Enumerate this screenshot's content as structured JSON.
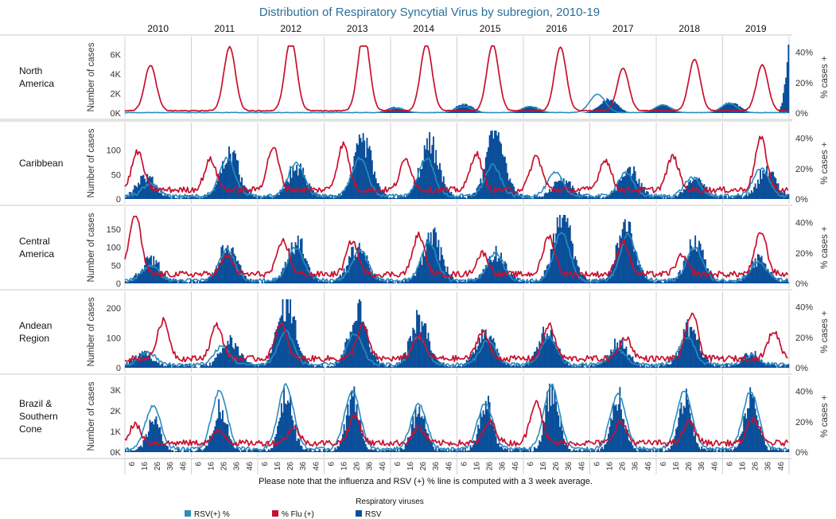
{
  "chart_data": {
    "type": "bar+line",
    "title": "Distribution of Respiratory Syncytial Virus by subregion, 2010-19",
    "years": [
      "2010",
      "2011",
      "2012",
      "2013",
      "2014",
      "2015",
      "2016",
      "2017",
      "2018",
      "2019"
    ],
    "week_ticks": [
      "6",
      "16",
      "26",
      "36",
      "46"
    ],
    "left_axis_title": "Number of cases",
    "right_axis_title": "% cases +",
    "right_ticks": [
      "0%",
      "20%",
      "40%"
    ],
    "right_ylim": [
      0,
      45
    ],
    "note": "Please note that the influenza and RSV (+) % line is computed with a 3 week average.",
    "legend": {
      "title": "Respiratory viruses",
      "items": [
        {
          "label": "RSV(+) %",
          "color": "#2b8cbe"
        },
        {
          "label": "% Flu (+)",
          "color": "#c8102e"
        },
        {
          "label": "RSV",
          "color": "#08519c"
        }
      ]
    },
    "colors": {
      "rsv_bars": "#0b4f9a",
      "rsv_pct": "#2b8cbe",
      "flu_pct": "#c8102e"
    },
    "panels": [
      {
        "region": "North America",
        "region_lines": [
          "North",
          "America"
        ],
        "left_ticks": [
          "0K",
          "2K",
          "4K",
          "6K"
        ],
        "left_tick_values": [
          0,
          2000,
          4000,
          6000
        ],
        "ylim": [
          0,
          7000
        ],
        "rsv_peaks": [
          [
            0,
            0
          ],
          [
            0,
            0
          ],
          [
            0,
            0
          ],
          [
            0,
            0
          ],
          [
            600,
            3
          ],
          [
            900,
            5
          ],
          [
            700,
            5
          ],
          [
            1400,
            14
          ],
          [
            800,
            5
          ],
          [
            1100,
            6
          ]
        ],
        "rsv_end_surge": 6800,
        "flu_peaks": [
          [
            30,
            20
          ],
          [
            42,
            30
          ],
          [
            48,
            26
          ],
          [
            52,
            31
          ],
          [
            44,
            28
          ],
          [
            44,
            28
          ],
          [
            42,
            29
          ],
          [
            28,
            26
          ],
          [
            34,
            30
          ],
          [
            30,
            31
          ]
        ],
        "rsv_pct_peaks": [
          [
            0,
            0
          ],
          [
            0,
            0
          ],
          [
            0,
            0
          ],
          [
            0,
            0
          ],
          [
            3,
            5
          ],
          [
            4,
            5
          ],
          [
            4,
            5
          ],
          [
            12,
            6
          ],
          [
            5,
            5
          ],
          [
            6,
            5
          ]
        ]
      },
      {
        "region": "Caribbean",
        "region_lines": [
          "Caribbean"
        ],
        "left_ticks": [
          "0",
          "50",
          "100"
        ],
        "left_tick_values": [
          0,
          50,
          100
        ],
        "ylim": [
          0,
          140
        ],
        "rsv_peaks": [
          [
            40,
            16
          ],
          [
            88,
            30
          ],
          [
            60,
            30
          ],
          [
            110,
            30
          ],
          [
            105,
            30
          ],
          [
            135,
            30
          ],
          [
            35,
            30
          ],
          [
            60,
            30
          ],
          [
            35,
            30
          ],
          [
            55,
            34
          ]
        ],
        "flu_peaks": [
          [
            25,
            10
          ],
          [
            20,
            15
          ],
          [
            28,
            12
          ],
          [
            30,
            15
          ],
          [
            20,
            12
          ],
          [
            24,
            15
          ],
          [
            22,
            10
          ],
          [
            20,
            12
          ],
          [
            22,
            13
          ],
          [
            34,
            30
          ]
        ],
        "rsv_pct_peaks": [
          [
            8,
            20
          ],
          [
            25,
            28
          ],
          [
            22,
            30
          ],
          [
            25,
            28
          ],
          [
            25,
            28
          ],
          [
            20,
            28
          ],
          [
            15,
            25
          ],
          [
            15,
            28
          ],
          [
            12,
            28
          ],
          [
            18,
            30
          ]
        ]
      },
      {
        "region": "Central America",
        "region_lines": [
          "Central",
          "America"
        ],
        "left_ticks": [
          "0",
          "50",
          "100",
          "150"
        ],
        "left_tick_values": [
          0,
          50,
          100,
          150
        ],
        "ylim": [
          0,
          190
        ],
        "rsv_peaks": [
          [
            60,
            20
          ],
          [
            100,
            28
          ],
          [
            110,
            30
          ],
          [
            95,
            26
          ],
          [
            125,
            32
          ],
          [
            80,
            30
          ],
          [
            180,
            30
          ],
          [
            150,
            28
          ],
          [
            110,
            30
          ],
          [
            60,
            28
          ]
        ],
        "flu_peaks": [
          [
            40,
            8
          ],
          [
            12,
            28
          ],
          [
            22,
            20
          ],
          [
            22,
            22
          ],
          [
            26,
            22
          ],
          [
            14,
            20
          ],
          [
            25,
            20
          ],
          [
            22,
            26
          ],
          [
            12,
            20
          ],
          [
            28,
            30
          ]
        ],
        "rsv_pct_peaks": [
          [
            10,
            20
          ],
          [
            20,
            28
          ],
          [
            22,
            30
          ],
          [
            20,
            28
          ],
          [
            25,
            30
          ],
          [
            18,
            30
          ],
          [
            32,
            30
          ],
          [
            30,
            30
          ],
          [
            22,
            30
          ],
          [
            12,
            28
          ]
        ]
      },
      {
        "region": "Andean Region",
        "region_lines": [
          "Andean",
          "Region"
        ],
        "left_ticks": [
          "0",
          "100",
          "200"
        ],
        "left_tick_values": [
          0,
          100,
          200
        ],
        "ylim": [
          0,
          230
        ],
        "rsv_peaks": [
          [
            45,
            14
          ],
          [
            80,
            30
          ],
          [
            210,
            22
          ],
          [
            185,
            26
          ],
          [
            150,
            22
          ],
          [
            120,
            22
          ],
          [
            120,
            18
          ],
          [
            75,
            22
          ],
          [
            130,
            26
          ],
          [
            40,
            22
          ]
        ],
        "flu_peaks": [
          [
            25,
            30
          ],
          [
            22,
            20
          ],
          [
            23,
            18
          ],
          [
            22,
            30
          ],
          [
            15,
            22
          ],
          [
            18,
            20
          ],
          [
            22,
            20
          ],
          [
            14,
            28
          ],
          [
            30,
            28
          ],
          [
            18,
            40
          ]
        ],
        "rsv_pct_peaks": [
          [
            8,
            18
          ],
          [
            12,
            24
          ],
          [
            22,
            22
          ],
          [
            20,
            24
          ],
          [
            18,
            22
          ],
          [
            16,
            24
          ],
          [
            18,
            20
          ],
          [
            10,
            22
          ],
          [
            18,
            24
          ],
          [
            6,
            22
          ]
        ]
      },
      {
        "region": "Brazil & Southern Cone",
        "region_lines": [
          "Brazil &",
          "Southern",
          "Cone"
        ],
        "left_ticks": [
          "0K",
          "1K",
          "2K",
          "3K"
        ],
        "left_tick_values": [
          0,
          1000,
          2000,
          3000
        ],
        "ylim": [
          0,
          3300
        ],
        "rsv_peaks": [
          [
            1400,
            22
          ],
          [
            2000,
            22
          ],
          [
            2600,
            22
          ],
          [
            2500,
            22
          ],
          [
            2100,
            22
          ],
          [
            2200,
            22
          ],
          [
            3000,
            22
          ],
          [
            2500,
            22
          ],
          [
            2600,
            22
          ],
          [
            2600,
            22
          ]
        ],
        "flu_peaks": [
          [
            12,
            8
          ],
          [
            8,
            22
          ],
          [
            10,
            28
          ],
          [
            18,
            24
          ],
          [
            10,
            22
          ],
          [
            14,
            26
          ],
          [
            28,
            10
          ],
          [
            14,
            24
          ],
          [
            14,
            26
          ],
          [
            16,
            24
          ]
        ],
        "rsv_pct_peaks": [
          [
            28,
            22
          ],
          [
            38,
            22
          ],
          [
            42,
            22
          ],
          [
            38,
            22
          ],
          [
            30,
            22
          ],
          [
            30,
            22
          ],
          [
            42,
            22
          ],
          [
            36,
            22
          ],
          [
            38,
            22
          ],
          [
            38,
            22
          ]
        ]
      }
    ]
  }
}
